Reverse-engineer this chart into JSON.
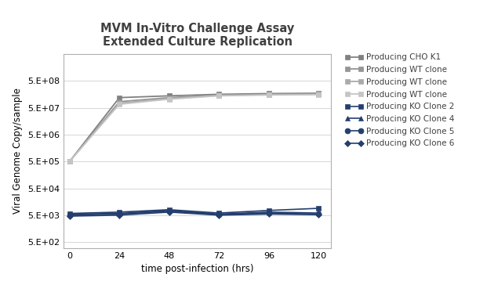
{
  "title_line1": "MVM In-Vitro Challenge Assay",
  "title_line2": "Extended Culture Replication",
  "xlabel": "time post-infection (hrs)",
  "ylabel": "Viral Genome Copy/sample",
  "x": [
    0,
    24,
    48,
    72,
    96,
    120
  ],
  "series": [
    {
      "label": "Producing CHO K1",
      "color": "#808080",
      "marker": "s",
      "markersize": 5,
      "linewidth": 1.3,
      "markerfacecolor": "#808080",
      "values": [
        500000.0,
        120000000.0,
        140000000.0,
        160000000.0,
        170000000.0,
        175000000.0
      ]
    },
    {
      "label": "Producing WT clone",
      "color": "#959595",
      "marker": "s",
      "markersize": 5,
      "linewidth": 1.3,
      "markerfacecolor": "#959595",
      "values": [
        500000.0,
        85000000.0,
        120000000.0,
        150000000.0,
        160000000.0,
        165000000.0
      ]
    },
    {
      "label": "Producing WT clone",
      "color": "#aaaaaa",
      "marker": "s",
      "markersize": 5,
      "linewidth": 1.3,
      "markerfacecolor": "#aaaaaa",
      "values": [
        500000.0,
        75000000.0,
        110000000.0,
        145000000.0,
        155000000.0,
        160000000.0
      ]
    },
    {
      "label": "Producing WT clone",
      "color": "#c5c5c5",
      "marker": "s",
      "markersize": 5,
      "linewidth": 1.3,
      "markerfacecolor": "#c5c5c5",
      "values": [
        500000.0,
        68000000.0,
        105000000.0,
        140000000.0,
        150000000.0,
        155000000.0
      ]
    },
    {
      "label": "Producing KO Clone 2",
      "color": "#243f6e",
      "marker": "s",
      "markersize": 5,
      "linewidth": 1.2,
      "markerfacecolor": "#243f6e",
      "values": [
        5800.0,
        6500.0,
        8000.0,
        6000.0,
        7500.0,
        9000.0
      ]
    },
    {
      "label": "Producing KO Clone 4",
      "color": "#243f6e",
      "marker": "^",
      "markersize": 5,
      "linewidth": 1.2,
      "markerfacecolor": "#243f6e",
      "values": [
        5500.0,
        5800.0,
        7500.0,
        5500.0,
        6500.0,
        6000.0
      ]
    },
    {
      "label": "Producing KO Clone 5",
      "color": "#243f6e",
      "marker": "o",
      "markersize": 5,
      "linewidth": 1.2,
      "markerfacecolor": "#243f6e",
      "values": [
        5000.0,
        5500.0,
        7000.0,
        5200.0,
        6000.0,
        5500.0
      ]
    },
    {
      "label": "Producing KO Clone 6",
      "color": "#243f6e",
      "marker": "D",
      "markersize": 4,
      "linewidth": 1.2,
      "markerfacecolor": "#243f6e",
      "values": [
        4600.0,
        5000.0,
        6500.0,
        5000.0,
        5500.0,
        5200.0
      ]
    }
  ],
  "ylim_log": [
    300,
    5000000000.0
  ],
  "yticks": [
    500.0,
    5000.0,
    50000.0,
    500000.0,
    5000000.0,
    50000000.0,
    500000000.0
  ],
  "ytick_labels": [
    "5.E+02",
    "5.E+03",
    "5.E+04",
    "5.E+05",
    "5.E+06",
    "5.E+07",
    "5.E+08"
  ],
  "xticks": [
    0,
    24,
    48,
    72,
    96,
    120
  ],
  "background_color": "#ffffff",
  "title_fontsize": 10.5,
  "axis_label_fontsize": 8.5,
  "tick_fontsize": 8,
  "legend_fontsize": 7.5
}
